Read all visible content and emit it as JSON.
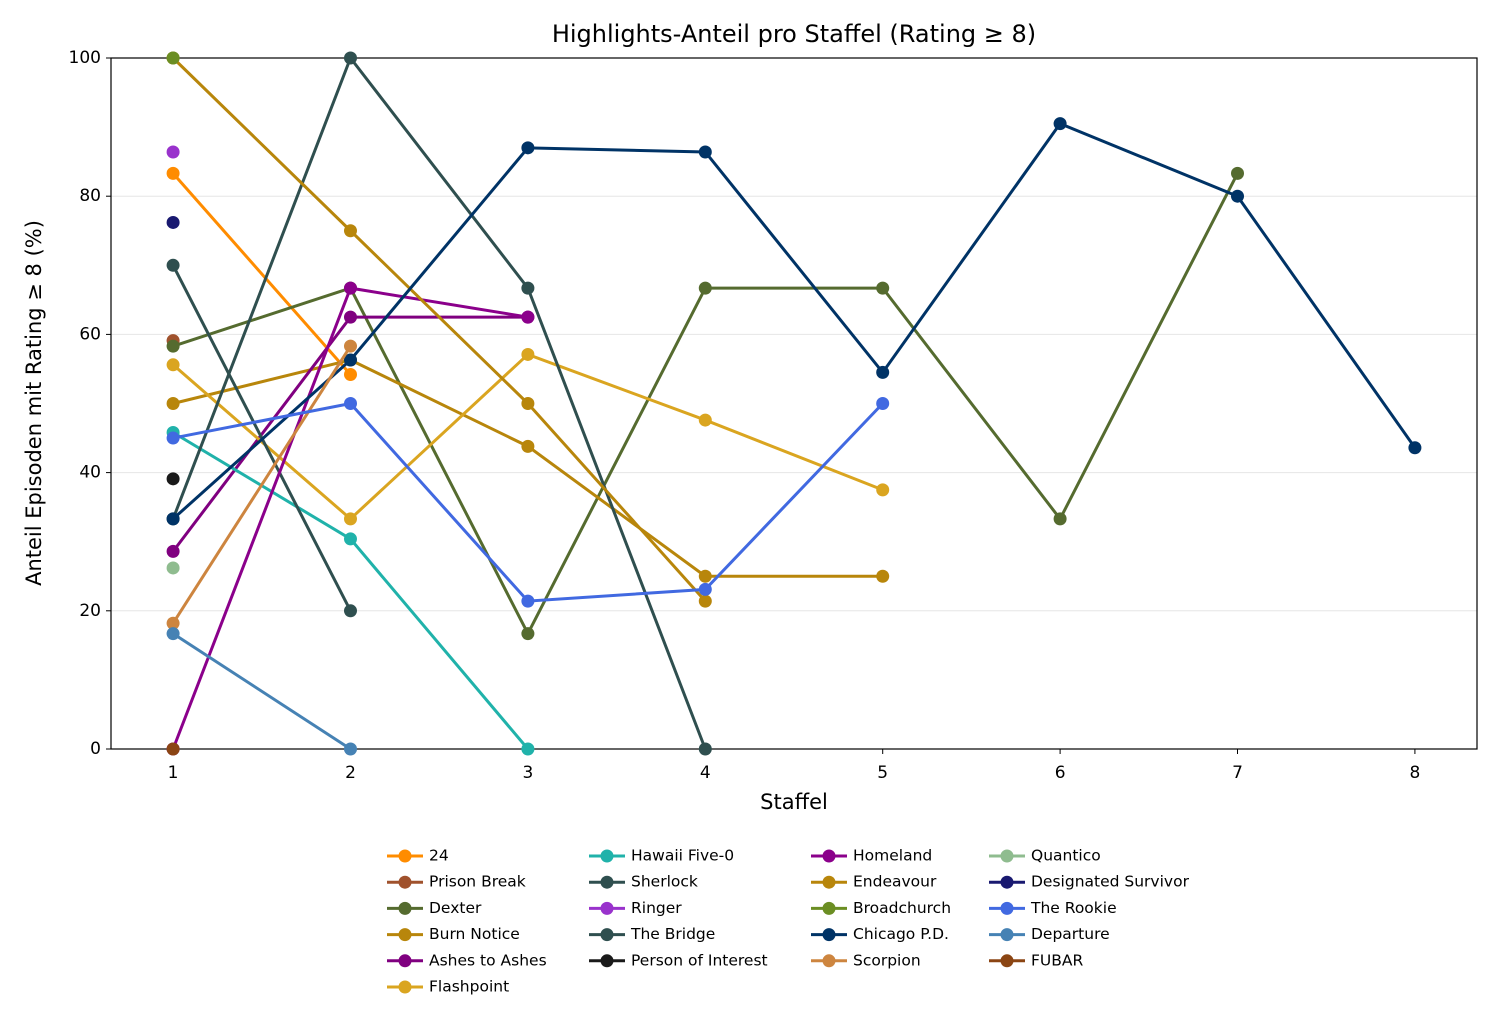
{
  "chart_data": {
    "type": "line",
    "title": "Highlights-Anteil pro Staffel (Rating ≥ 8)",
    "x_label": "Staffel",
    "y_label": "Anteil Episoden mit Rating ≥ 8 (%)",
    "x": [
      1,
      2,
      3,
      4,
      5,
      6,
      7,
      8
    ],
    "xlim": [
      0.65,
      8.35
    ],
    "xticks": [
      1,
      2,
      3,
      4,
      5,
      6,
      7,
      8
    ],
    "ylim": [
      0,
      100
    ],
    "yticks": [
      0,
      20,
      40,
      60,
      80,
      100
    ],
    "grid": true,
    "series": [
      {
        "name": "24",
        "color": "#ff8c00",
        "values": [
          83.3,
          54.2,
          null,
          null,
          null,
          null,
          null,
          null
        ]
      },
      {
        "name": "Prison Break",
        "color": "#a0522d",
        "values": [
          59.1,
          null,
          null,
          null,
          null,
          null,
          null,
          null
        ]
      },
      {
        "name": "Dexter",
        "color": "#556b2f",
        "values": [
          58.3,
          66.7,
          16.7,
          66.7,
          66.7,
          33.3,
          83.3,
          null
        ]
      },
      {
        "name": "Burn Notice",
        "color": "#b8860b",
        "values": [
          50,
          56.3,
          43.8,
          25,
          25,
          null,
          null,
          null
        ]
      },
      {
        "name": "Ashes to Ashes",
        "color": "#800080",
        "values": [
          28.6,
          62.5,
          62.5,
          null,
          null,
          null,
          null,
          null
        ]
      },
      {
        "name": "Flashpoint",
        "color": "#daa520",
        "values": [
          55.6,
          33.3,
          57.1,
          47.6,
          37.5,
          null,
          null,
          null
        ]
      },
      {
        "name": "Hawaii Five-0",
        "color": "#20b2aa",
        "values": [
          45.8,
          30.4,
          0,
          null,
          null,
          null,
          null,
          null
        ]
      },
      {
        "name": "Sherlock",
        "color": "#2f4f4f",
        "values": [
          70,
          20,
          null,
          null,
          null,
          null,
          null,
          null
        ]
      },
      {
        "name": "Ringer",
        "color": "#9932cc",
        "values": [
          86.4,
          null,
          null,
          null,
          null,
          null,
          null,
          null
        ]
      },
      {
        "name": "The Bridge",
        "color": "#2f4f4f",
        "values": [
          33.3,
          100,
          66.7,
          0,
          null,
          null,
          null,
          null
        ]
      },
      {
        "name": "Person of Interest",
        "color": "#1a1a1a",
        "values": [
          39.1,
          null,
          null,
          null,
          null,
          null,
          null,
          null
        ]
      },
      {
        "name": "Homeland",
        "color": "#8b008b",
        "values": [
          0,
          66.7,
          62.5,
          null,
          null,
          null,
          null,
          null
        ]
      },
      {
        "name": "Endeavour",
        "color": "#b8860b",
        "values": [
          100,
          75,
          50,
          21.4,
          null,
          null,
          null,
          null
        ]
      },
      {
        "name": "Broadchurch",
        "color": "#6b8e23",
        "values": [
          100,
          null,
          null,
          null,
          null,
          null,
          null,
          null
        ]
      },
      {
        "name": "Chicago P.D.",
        "color": "#003366",
        "values": [
          33.3,
          56.3,
          87,
          86.4,
          54.5,
          90.5,
          80,
          43.6
        ]
      },
      {
        "name": "Scorpion",
        "color": "#cd853f",
        "values": [
          18.2,
          58.3,
          null,
          null,
          null,
          null,
          null,
          null
        ]
      },
      {
        "name": "Quantico",
        "color": "#8fbc8f",
        "values": [
          26.2,
          null,
          null,
          null,
          null,
          null,
          null,
          null
        ]
      },
      {
        "name": "Designated Survivor",
        "color": "#191970",
        "values": [
          76.2,
          null,
          null,
          null,
          null,
          null,
          null,
          null
        ]
      },
      {
        "name": "The Rookie",
        "color": "#4169e1",
        "values": [
          45,
          50,
          21.4,
          23.1,
          50,
          null,
          null,
          null
        ]
      },
      {
        "name": "Departure",
        "color": "#4682b4",
        "values": [
          16.7,
          0,
          null,
          null,
          null,
          null,
          null,
          null
        ]
      },
      {
        "name": "FUBAR",
        "color": "#8b4513",
        "values": [
          0,
          null,
          null,
          null,
          null,
          null,
          null,
          null
        ]
      }
    ]
  }
}
